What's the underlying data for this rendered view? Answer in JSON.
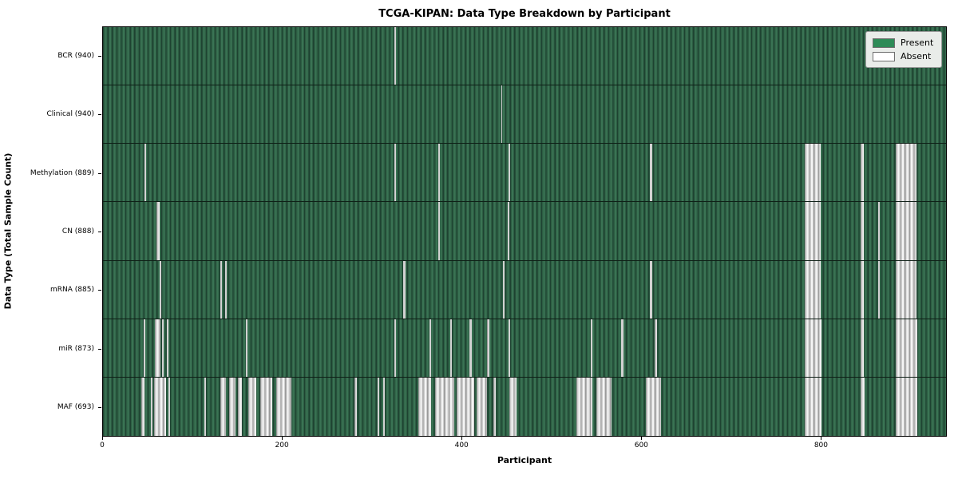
{
  "title": "TCGA-KIPAN: Data Type Breakdown by Participant",
  "axes": {
    "xlabel": "Participant",
    "ylabel": "Data Type (Total Sample Count)"
  },
  "legend": {
    "items": [
      {
        "label": "Present",
        "color": "#2e8b57"
      },
      {
        "label": "Absent",
        "color": "#ffffff"
      }
    ]
  },
  "chart_data": {
    "type": "heatmap",
    "title": "TCGA-KIPAN: Data Type Breakdown by Participant",
    "xlabel": "Participant",
    "ylabel": "Data Type (Total Sample Count)",
    "x_domain": [
      0,
      940
    ],
    "xticks": [
      0,
      200,
      400,
      600,
      800
    ],
    "grid": false,
    "legend_position": "upper right",
    "legend_entries": [
      "Present",
      "Absent"
    ],
    "cell_colors": {
      "present": "#2e8b57",
      "absent": "#ffffff"
    },
    "rows": [
      {
        "label": "BCR (940)",
        "data_type": "BCR",
        "total_samples": 940,
        "absent_ranges": [
          [
            325,
            326.5
          ]
        ]
      },
      {
        "label": "Clinical (940)",
        "data_type": "Clinical",
        "total_samples": 940,
        "absent_ranges": [
          [
            444,
            445.5
          ]
        ]
      },
      {
        "label": "Methylation (889)",
        "data_type": "Methylation",
        "total_samples": 889,
        "absent_ranges": [
          [
            46,
            48
          ],
          [
            325,
            327
          ],
          [
            374,
            376
          ],
          [
            452,
            454
          ],
          [
            610,
            612
          ],
          [
            782,
            800
          ],
          [
            845,
            848
          ],
          [
            884,
            907
          ]
        ]
      },
      {
        "label": "CN (888)",
        "data_type": "CN",
        "total_samples": 888,
        "absent_ranges": [
          [
            60,
            63
          ],
          [
            374,
            376
          ],
          [
            451,
            453
          ],
          [
            782,
            800
          ],
          [
            845,
            848
          ],
          [
            864,
            866
          ],
          [
            884,
            907
          ]
        ]
      },
      {
        "label": "mRNA (885)",
        "data_type": "mRNA",
        "total_samples": 885,
        "absent_ranges": [
          [
            63,
            65
          ],
          [
            131,
            133
          ],
          [
            136,
            138
          ],
          [
            335,
            337
          ],
          [
            446,
            448
          ],
          [
            610,
            612
          ],
          [
            782,
            800
          ],
          [
            845,
            848
          ],
          [
            864,
            866
          ],
          [
            884,
            907
          ]
        ]
      },
      {
        "label": "miR (873)",
        "data_type": "miR",
        "total_samples": 873,
        "absent_ranges": [
          [
            45,
            47
          ],
          [
            58,
            64
          ],
          [
            66,
            68
          ],
          [
            71,
            73
          ],
          [
            159,
            161
          ],
          [
            325,
            327
          ],
          [
            364,
            366
          ],
          [
            387,
            389
          ],
          [
            409,
            411
          ],
          [
            428,
            431
          ],
          [
            452,
            454
          ],
          [
            544,
            546
          ],
          [
            578,
            580
          ],
          [
            615,
            618
          ],
          [
            782,
            801
          ],
          [
            845,
            848
          ],
          [
            884,
            908
          ]
        ]
      },
      {
        "label": "MAF (693)",
        "data_type": "MAF",
        "total_samples": 693,
        "absent_ranges": [
          [
            43,
            46
          ],
          [
            53,
            55
          ],
          [
            57,
            70
          ],
          [
            73,
            75
          ],
          [
            113,
            115
          ],
          [
            131,
            137
          ],
          [
            141,
            148
          ],
          [
            150,
            155
          ],
          [
            162,
            171
          ],
          [
            175,
            189
          ],
          [
            193,
            210
          ],
          [
            280,
            283
          ],
          [
            306,
            308
          ],
          [
            312,
            314
          ],
          [
            352,
            366
          ],
          [
            370,
            392
          ],
          [
            394,
            414
          ],
          [
            417,
            428
          ],
          [
            435,
            438
          ],
          [
            453,
            461
          ],
          [
            528,
            546
          ],
          [
            550,
            567
          ],
          [
            605,
            622
          ],
          [
            782,
            801
          ],
          [
            845,
            849
          ],
          [
            884,
            908
          ]
        ]
      }
    ]
  }
}
